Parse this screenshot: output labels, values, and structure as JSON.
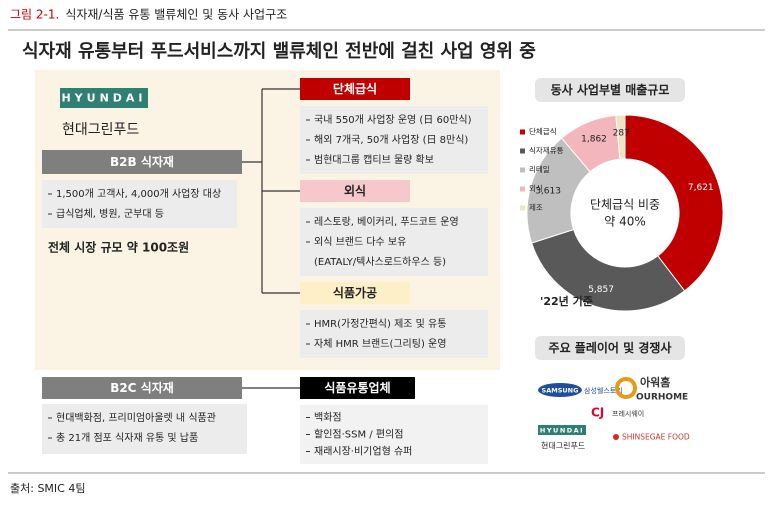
{
  "header": {
    "figure_no": "그림 2-1.",
    "caption": "식자재/식품 유통 밸류체인 및 동사 사업구조",
    "title": "식자재 유통부터 푸드서비스까지 밸류체인 전반에 걸친 사업 영위 중"
  },
  "company": {
    "logo": "HYUNDAI",
    "name": "현대그린푸드"
  },
  "b2b": {
    "label": "B2B 식자재",
    "items": [
      "1,500개 고객사, 4,000개 사업장 대상",
      "급식업체, 병원, 군부대 등"
    ],
    "market": "전체 시장 규모 약 100조원"
  },
  "b2c": {
    "label": "B2C 식자재",
    "items": [
      "현대백화점, 프리미엄아울렛 내 식품관",
      "총 21개 점포 식자재 유통 및 납품"
    ]
  },
  "segments": [
    {
      "label": "단체급식",
      "items": [
        "국내 550개 사업장 운영 (日 60만식)",
        "해외 7개국, 50개 사업장 (日 8만식)",
        "범현대그룹 캡티브 물량 확보"
      ]
    },
    {
      "label": "외식",
      "items": [
        "레스토랑, 베이커리, 푸드코트 운영",
        "외식 브랜드 다수 보유",
        "(EATALY/텍사스로드하우스 등)"
      ]
    },
    {
      "label": "식품가공",
      "items": [
        "HMR(가정간편식) 제조 및 유통",
        "자체 HMR 브랜드(그리팅) 운영"
      ]
    },
    {
      "label": "식품유통업체",
      "items": [
        "백화점",
        "할인점·SSM / 편의점",
        "재래시장·비기업형 슈퍼"
      ]
    }
  ],
  "chart_data": {
    "type": "donut",
    "title": "동사 사업부별 매출규모",
    "categories": [
      "단체급식",
      "식자재유통",
      "리테일",
      "외식",
      "제조"
    ],
    "values": [
      7621,
      5857,
      3613,
      1862,
      287
    ],
    "value_labels": [
      "7,621",
      "5,857",
      "3,613",
      "1,862",
      "287"
    ],
    "colors": [
      "#c00000",
      "#595959",
      "#bfbfbf",
      "#f4b6bd",
      "#f2e2c4"
    ],
    "center_text": [
      "단체급식 비중",
      "약 40%"
    ],
    "note": "'22년 기준"
  },
  "competitors": {
    "title": "주요 플레이어 및 경쟁사",
    "logos": [
      "SAMSUNG",
      "삼성웰스토리",
      "아워홈",
      "OURHOME",
      "CJ",
      "프레시웨이",
      "HYUNDAI",
      "현대그린푸드",
      "SHINSEGAE FOOD"
    ]
  },
  "footer": {
    "source": "출처: SMIC 4팀"
  }
}
